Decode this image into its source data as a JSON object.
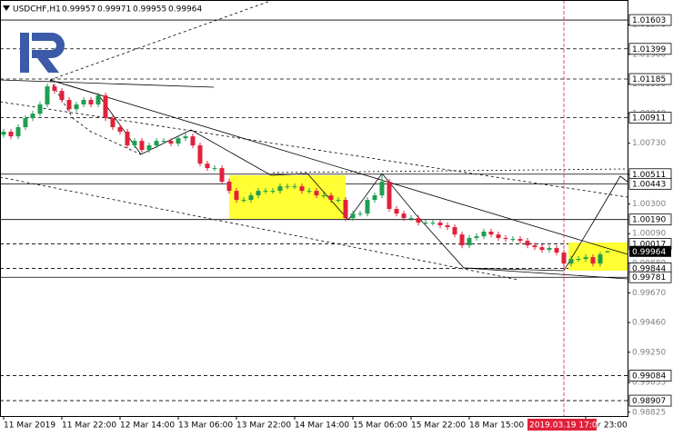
{
  "chart_data": {
    "type": "candlestick",
    "title": "USDCHF,H1",
    "header_values": [
      0.99957,
      0.99971,
      0.99955,
      0.99964
    ],
    "up_color": "#1e9e50",
    "down_color": "#e0213b",
    "open": [
      1.0079,
      1.00812,
      1.00779,
      1.00844,
      1.00908,
      1.0094,
      1.01005,
      1.01133,
      1.01101,
      1.01037,
      1.00972,
      1.01005,
      1.01037,
      1.01005,
      1.01069,
      1.00908,
      1.00844,
      1.00812,
      1.00715,
      1.00747,
      1.00683,
      1.00715,
      1.00747,
      1.00747,
      1.00728,
      1.00766,
      1.00779,
      1.00715,
      1.00586,
      1.00554,
      1.00554,
      1.00458,
      1.00393,
      1.00329,
      1.00329,
      1.00361,
      1.00393,
      1.00393,
      1.00393,
      1.00425,
      1.00425,
      1.00425,
      1.00393,
      1.00393,
      1.00361,
      1.00361,
      1.00329,
      1.00329,
      1.002,
      1.00232,
      1.00232,
      1.00329,
      1.00361,
      1.00458,
      1.00265,
      1.00232,
      1.002,
      1.002,
      1.00168,
      1.00168,
      1.00168,
      1.00149,
      1.00136,
      1.00084,
      1.00007,
      1.00059,
      1.00071,
      1.00104,
      1.00084,
      1.00059,
      1.00052,
      1.00052,
      1.00039,
      1.00007,
      0.99994,
      0.99975,
      0.99988,
      0.99956,
      0.99878,
      0.99911,
      0.99911,
      0.99923,
      0.99878,
      0.99957
    ],
    "high": [
      1.00832,
      1.00832,
      1.00864,
      1.00928,
      1.0096,
      1.01025,
      1.01153,
      1.01153,
      1.01121,
      1.01057,
      1.01025,
      1.01057,
      1.01057,
      1.01089,
      1.01089,
      1.00928,
      1.00864,
      1.00832,
      1.00767,
      1.00767,
      1.00735,
      1.00767,
      1.00767,
      1.00767,
      1.00786,
      1.00799,
      1.00799,
      1.00735,
      1.00606,
      1.00574,
      1.00574,
      1.00478,
      1.00413,
      1.00349,
      1.00381,
      1.00413,
      1.00413,
      1.00413,
      1.00445,
      1.00445,
      1.00445,
      1.00445,
      1.00413,
      1.00413,
      1.00381,
      1.00381,
      1.00349,
      1.00349,
      1.00252,
      1.00252,
      1.00349,
      1.00381,
      1.00511,
      1.00478,
      1.00285,
      1.00252,
      1.0022,
      1.0022,
      1.00188,
      1.00188,
      1.00188,
      1.00169,
      1.00156,
      1.00104,
      1.00079,
      1.00091,
      1.00124,
      1.00124,
      1.00104,
      1.00079,
      1.00072,
      1.00072,
      1.00059,
      1.00027,
      1.00014,
      1.00008,
      1.00008,
      0.99976,
      0.99931,
      0.99931,
      0.99943,
      0.99943,
      0.99963,
      0.99971
    ],
    "low": [
      1.0077,
      1.00759,
      1.00759,
      1.00824,
      1.00888,
      1.0092,
      1.00985,
      1.01081,
      1.01017,
      1.00952,
      1.00952,
      1.00985,
      1.00985,
      1.00985,
      1.00888,
      1.00824,
      1.00792,
      1.00695,
      1.00695,
      1.00663,
      1.00663,
      1.00695,
      1.00727,
      1.00708,
      1.00708,
      1.00746,
      1.00695,
      1.00566,
      1.00534,
      1.00534,
      1.00438,
      1.00373,
      1.00309,
      1.00309,
      1.00309,
      1.00341,
      1.00373,
      1.00373,
      1.00373,
      1.00405,
      1.00405,
      1.00373,
      1.00373,
      1.00341,
      1.00341,
      1.00309,
      1.00309,
      1.0018,
      1.0018,
      1.00212,
      1.00212,
      1.00309,
      1.00341,
      1.00245,
      1.00212,
      1.0018,
      1.0018,
      1.00148,
      1.00148,
      1.00148,
      1.00129,
      1.00116,
      1.00064,
      0.99987,
      0.99987,
      1.00039,
      1.00051,
      1.00064,
      1.00039,
      1.00032,
      1.00032,
      1.00019,
      0.99987,
      0.99974,
      0.99955,
      0.99955,
      0.99936,
      0.99844,
      0.99858,
      0.99891,
      0.99891,
      0.99858,
      0.99858,
      0.99955
    ],
    "close": [
      1.00812,
      1.00779,
      1.00844,
      1.00908,
      1.0094,
      1.01005,
      1.01133,
      1.01101,
      1.01037,
      1.00972,
      1.01005,
      1.01037,
      1.01005,
      1.01069,
      1.00908,
      1.00844,
      1.00812,
      1.00715,
      1.00747,
      1.00683,
      1.00715,
      1.00747,
      1.00747,
      1.00728,
      1.00766,
      1.00779,
      1.00715,
      1.00586,
      1.00554,
      1.00554,
      1.00458,
      1.00393,
      1.00329,
      1.00329,
      1.00361,
      1.00393,
      1.00393,
      1.00393,
      1.00425,
      1.00425,
      1.00425,
      1.00393,
      1.00393,
      1.00361,
      1.00361,
      1.00329,
      1.00329,
      1.002,
      1.00232,
      1.00232,
      1.00329,
      1.00361,
      1.00458,
      1.00265,
      1.00232,
      1.002,
      1.002,
      1.00168,
      1.00168,
      1.00168,
      1.00149,
      1.00136,
      1.00084,
      1.00007,
      1.00059,
      1.00071,
      1.00104,
      1.00084,
      1.00059,
      1.00052,
      1.00052,
      1.00039,
      1.00007,
      0.99994,
      0.99975,
      0.99988,
      0.99956,
      0.99878,
      0.99911,
      0.99911,
      0.99923,
      0.99878,
      0.99943,
      0.99964
    ],
    "xlim": [
      -0.5,
      85.75
    ],
    "xticks": [
      {
        "value": 0,
        "label": "11 Mar 2019"
      },
      {
        "value": 8,
        "label": "11 Mar 22:00"
      },
      {
        "value": 16,
        "label": "12 Mar 14:00"
      },
      {
        "value": 24,
        "label": "13 Mar 06:00"
      },
      {
        "value": 32,
        "label": "13 Mar 22:00"
      },
      {
        "value": 40,
        "label": "14 Mar 14:00"
      },
      {
        "value": 48,
        "label": "15 Mar 06:00"
      },
      {
        "value": 56,
        "label": "15 Mar 22:00"
      },
      {
        "value": 64,
        "label": "18 Mar 15:00"
      },
      {
        "value": 80,
        "label": "Mar 23:00"
      }
    ],
    "cursor": {
      "value": 77,
      "label": "2019.03.19 17:00"
    },
    "ylim": [
      0.98798,
      1.01745
    ],
    "yticks": [
      {
        "value": 1.0157,
        "label": "1.01570"
      },
      {
        "value": 1.0136,
        "label": "1.01360"
      },
      {
        "value": 1.0115,
        "label": "1.01150"
      },
      {
        "value": 1.0094,
        "label": "1.00940"
      },
      {
        "value": 1.0073,
        "label": "1.00730"
      },
      {
        "value": 1.0051,
        "label": "1.00510"
      },
      {
        "value": 1.003,
        "label": "1.00300"
      },
      {
        "value": 1.0009,
        "label": "1.00090"
      },
      {
        "value": 0.9988,
        "label": "0.99880"
      },
      {
        "value": 0.9967,
        "label": "0.99670"
      },
      {
        "value": 0.9946,
        "label": "0.99460"
      },
      {
        "value": 0.9925,
        "label": "0.99250"
      },
      0.99035,
      0.98825
    ],
    "levels": [
      {
        "value": 1.01603,
        "dashed": false
      },
      {
        "value": 1.01399,
        "dashed": true
      },
      {
        "value": 1.01185,
        "dashed": true
      },
      {
        "value": 1.00911,
        "dashed": true
      },
      {
        "value": 1.00511,
        "dashed": false
      },
      {
        "value": 1.00443,
        "dashed": false
      },
      {
        "value": 1.0019,
        "label": "1.00190",
        "dashed": false
      },
      {
        "value": 1.00017,
        "dashed": true
      },
      {
        "value": 0.99844,
        "dashed": true
      },
      {
        "value": 0.99781,
        "dashed": false
      },
      {
        "value": 0.99084,
        "dashed": true
      },
      {
        "value": 0.98907,
        "dashed": true
      }
    ],
    "last_price": 0.99964
  }
}
